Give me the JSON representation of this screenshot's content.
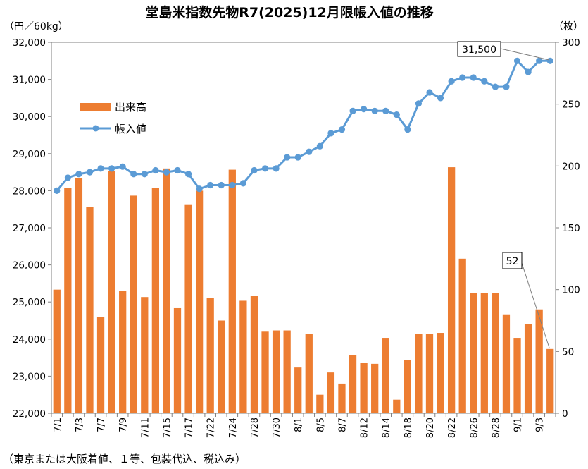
{
  "chart_data": {
    "type": "bar+line",
    "title": "堂島米指数先物R7(2025)12月限帳入値の推移",
    "left_unit": "（円／60kg）",
    "right_unit": "（枚）",
    "footnote": "（東京または大阪着値、１等、包装代込、税込み）",
    "legend": {
      "placement": "upper-left",
      "bar_label": "出来高",
      "line_label": "帳入値"
    },
    "colors": {
      "bar": "#ED7D31",
      "line": "#5B9BD5",
      "callout_line": "#808080"
    },
    "y_left": {
      "min": 22000,
      "max": 32000,
      "step": 1000,
      "tick_labels": [
        "22,000",
        "23,000",
        "24,000",
        "25,000",
        "26,000",
        "27,000",
        "28,000",
        "29,000",
        "30,000",
        "31,000",
        "32,000"
      ]
    },
    "y_right": {
      "min": 0,
      "max": 300,
      "step": 50,
      "tick_labels": [
        "0",
        "50",
        "100",
        "150",
        "200",
        "250",
        "300"
      ]
    },
    "x_labels": [
      {
        "i": 0,
        "label": "7/1"
      },
      {
        "i": 2,
        "label": "7/3"
      },
      {
        "i": 4,
        "label": "7/7"
      },
      {
        "i": 6,
        "label": "7/9"
      },
      {
        "i": 8,
        "label": "7/11"
      },
      {
        "i": 10,
        "label": "7/15"
      },
      {
        "i": 12,
        "label": "7/17"
      },
      {
        "i": 14,
        "label": "7/22"
      },
      {
        "i": 16,
        "label": "7/24"
      },
      {
        "i": 18,
        "label": "7/28"
      },
      {
        "i": 20,
        "label": "7/30"
      },
      {
        "i": 22,
        "label": "8/1"
      },
      {
        "i": 24,
        "label": "8/5"
      },
      {
        "i": 26,
        "label": "8/7"
      },
      {
        "i": 28,
        "label": "8/12"
      },
      {
        "i": 30,
        "label": "8/14"
      },
      {
        "i": 32,
        "label": "8/18"
      },
      {
        "i": 34,
        "label": "8/20"
      },
      {
        "i": 36,
        "label": "8/22"
      },
      {
        "i": 38,
        "label": "8/26"
      },
      {
        "i": 40,
        "label": "8/28"
      },
      {
        "i": 42,
        "label": "9/1"
      },
      {
        "i": 44,
        "label": "9/3"
      }
    ],
    "volume": [
      100,
      182,
      190,
      167,
      78,
      196,
      99,
      176,
      94,
      182,
      198,
      85,
      169,
      180,
      93,
      75,
      197,
      91,
      95,
      66,
      67,
      67,
      37,
      64,
      15,
      33,
      24,
      47,
      41,
      40,
      61,
      11,
      43,
      64,
      64,
      65,
      199,
      125,
      97,
      97,
      97,
      80,
      61,
      72,
      84,
      52
    ],
    "price": [
      28000,
      28350,
      28450,
      28500,
      28600,
      28600,
      28650,
      28450,
      28450,
      28550,
      28500,
      28550,
      28450,
      28050,
      28150,
      28150,
      28150,
      28200,
      28550,
      28600,
      28600,
      28900,
      28900,
      29050,
      29200,
      29550,
      29650,
      30150,
      30200,
      30150,
      30150,
      30050,
      29650,
      30350,
      30650,
      30500,
      30950,
      31050,
      31050,
      30950,
      30800,
      30800,
      31500,
      31200,
      31500,
      31500
    ],
    "callouts": {
      "last_price": "31,500",
      "last_volume": "52"
    }
  }
}
